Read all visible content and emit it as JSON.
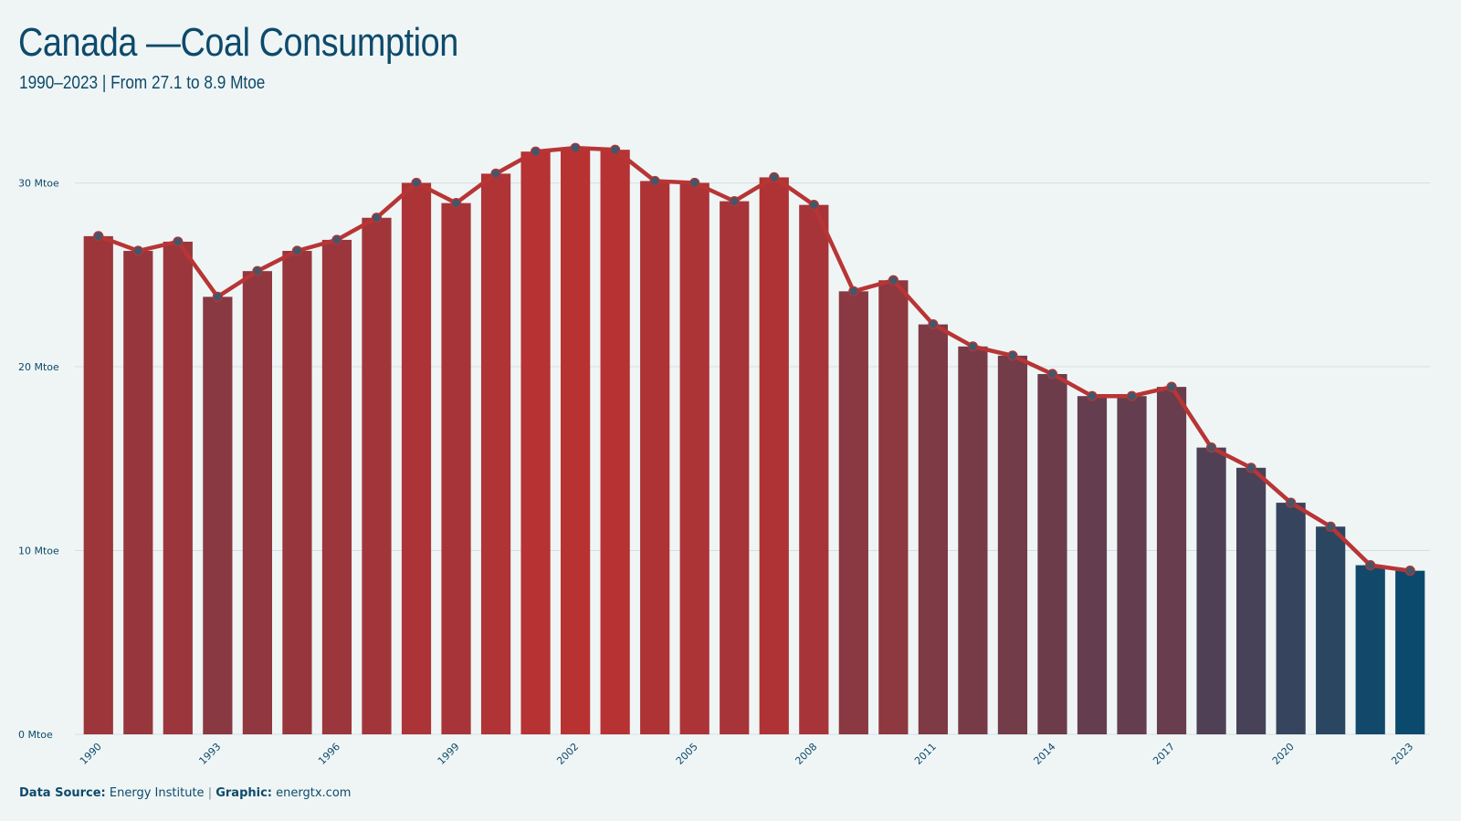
{
  "header": {
    "title": "Canada —Coal Consumption",
    "subtitle": "1990–2023 | From 27.1 to 8.9 Mtoe"
  },
  "footer": {
    "source_label": "Data Source:",
    "source_value": "Energy Institute",
    "separator": "|",
    "graphic_label": "Graphic:",
    "graphic_value": "energtx.com"
  },
  "colors": {
    "background": "#eff5f5",
    "line": "#b83535",
    "bar_high": "#b83232",
    "bar_low": "#0b4a6c",
    "marker": "#475569",
    "grid": "#d5dfe3",
    "text": "#0d4a6b"
  },
  "chart_data": {
    "type": "bar",
    "title": "Canada —Coal Consumption",
    "subtitle": "1990–2023 | From 27.1 to 8.9 Mtoe",
    "xlabel": "",
    "ylabel": "",
    "unit": "Mtoe",
    "ylim": [
      0,
      33
    ],
    "yticks": [
      0,
      10,
      20,
      30
    ],
    "ytick_labels": [
      "0 Mtoe",
      "10 Mtoe",
      "20 Mtoe",
      "30 Mtoe"
    ],
    "xtick_labels": [
      "1990",
      "1993",
      "1996",
      "1999",
      "2002",
      "2005",
      "2008",
      "2011",
      "2014",
      "2017",
      "2020",
      "2023"
    ],
    "grid": true,
    "categories": [
      "1990",
      "1991",
      "1992",
      "1993",
      "1994",
      "1995",
      "1996",
      "1997",
      "1998",
      "1999",
      "2000",
      "2001",
      "2002",
      "2003",
      "2004",
      "2005",
      "2006",
      "2007",
      "2008",
      "2009",
      "2010",
      "2011",
      "2012",
      "2013",
      "2014",
      "2015",
      "2016",
      "2017",
      "2018",
      "2019",
      "2020",
      "2021",
      "2022",
      "2023"
    ],
    "values": [
      27.1,
      26.3,
      26.8,
      23.8,
      25.2,
      26.3,
      26.9,
      28.1,
      30.0,
      28.9,
      30.5,
      31.7,
      31.9,
      31.8,
      30.1,
      30.0,
      29.0,
      30.3,
      28.8,
      24.1,
      24.7,
      22.3,
      21.1,
      20.6,
      19.6,
      18.4,
      18.4,
      18.9,
      15.6,
      14.5,
      12.6,
      11.3,
      9.2,
      8.9
    ],
    "overlay": "line with markers over bars"
  }
}
